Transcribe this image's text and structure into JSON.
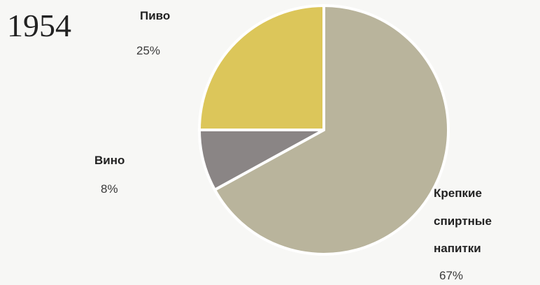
{
  "chart_data": {
    "type": "pie",
    "title": "1954",
    "slices": [
      {
        "label": "Крепкие спиртные напитки",
        "label_lines": [
          "Крепкие",
          "спиртные",
          "напитки"
        ],
        "value": 67,
        "display": "67%",
        "color": "#b9b49c"
      },
      {
        "label": "Вино",
        "label_lines": [
          "Вино"
        ],
        "value": 8,
        "display": "8%",
        "color": "#8a8585"
      },
      {
        "label": "Пиво",
        "label_lines": [
          "Пиво"
        ],
        "value": 25,
        "display": "25%",
        "color": "#dcc65a"
      }
    ],
    "start_direction": "top",
    "direction": "clockwise",
    "legend": "none"
  }
}
